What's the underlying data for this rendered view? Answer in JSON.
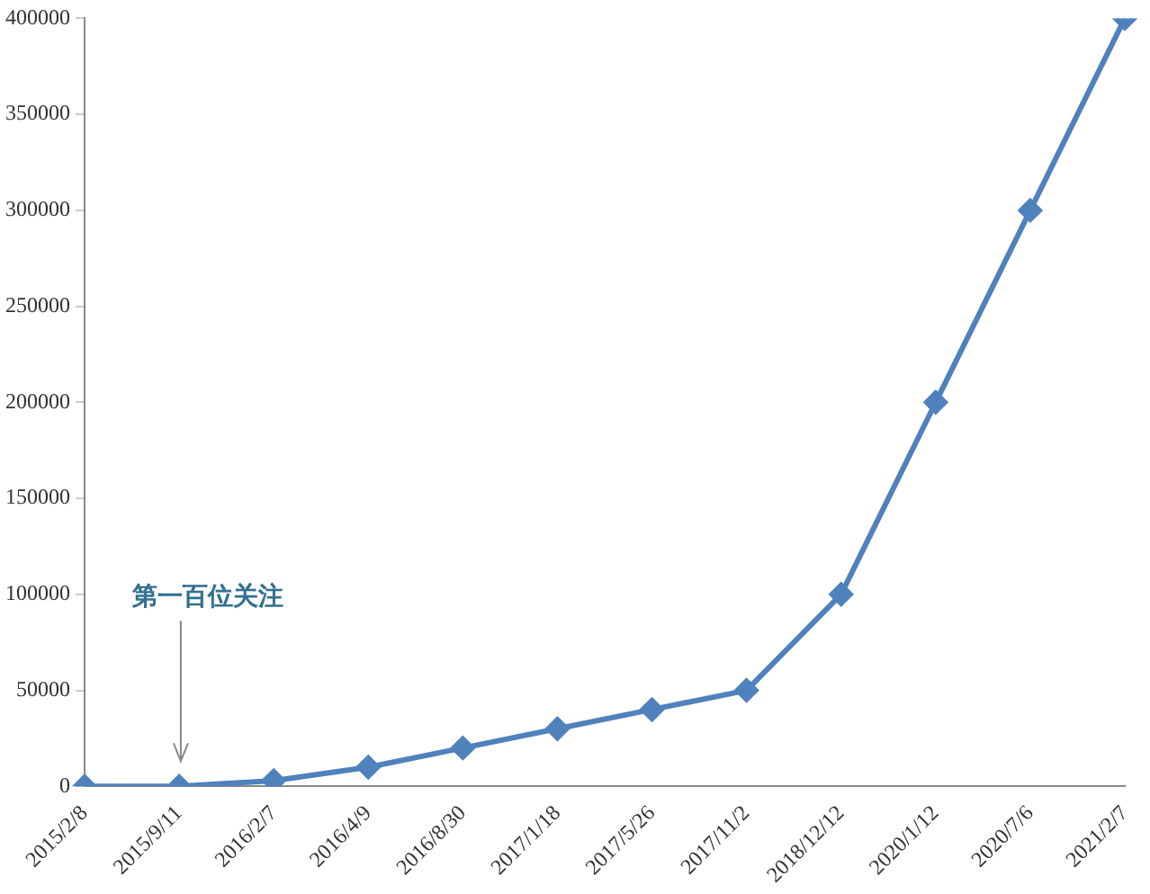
{
  "chart_data": {
    "type": "line",
    "categories": [
      "2015/2/8",
      "2015/9/11",
      "2016/2/7",
      "2016/4/9",
      "2016/8/30",
      "2017/1/18",
      "2017/5/26",
      "2017/11/2",
      "2018/12/12",
      "2020/1/12",
      "2020/7/6",
      "2021/2/7"
    ],
    "series": [
      {
        "color": "#4f81bd",
        "values": [
          0,
          0,
          3000,
          10000,
          20000,
          30000,
          40000,
          50000,
          100000,
          200000,
          300000,
          400000
        ]
      }
    ],
    "ylim": [
      0,
      400000
    ],
    "yticks": [
      0,
      50000,
      100000,
      150000,
      200000,
      250000,
      300000,
      350000,
      400000
    ],
    "grid": false,
    "legend": false,
    "marker": "diamond",
    "line_style": "solid",
    "annotations": [
      "第一百位关注"
    ]
  }
}
